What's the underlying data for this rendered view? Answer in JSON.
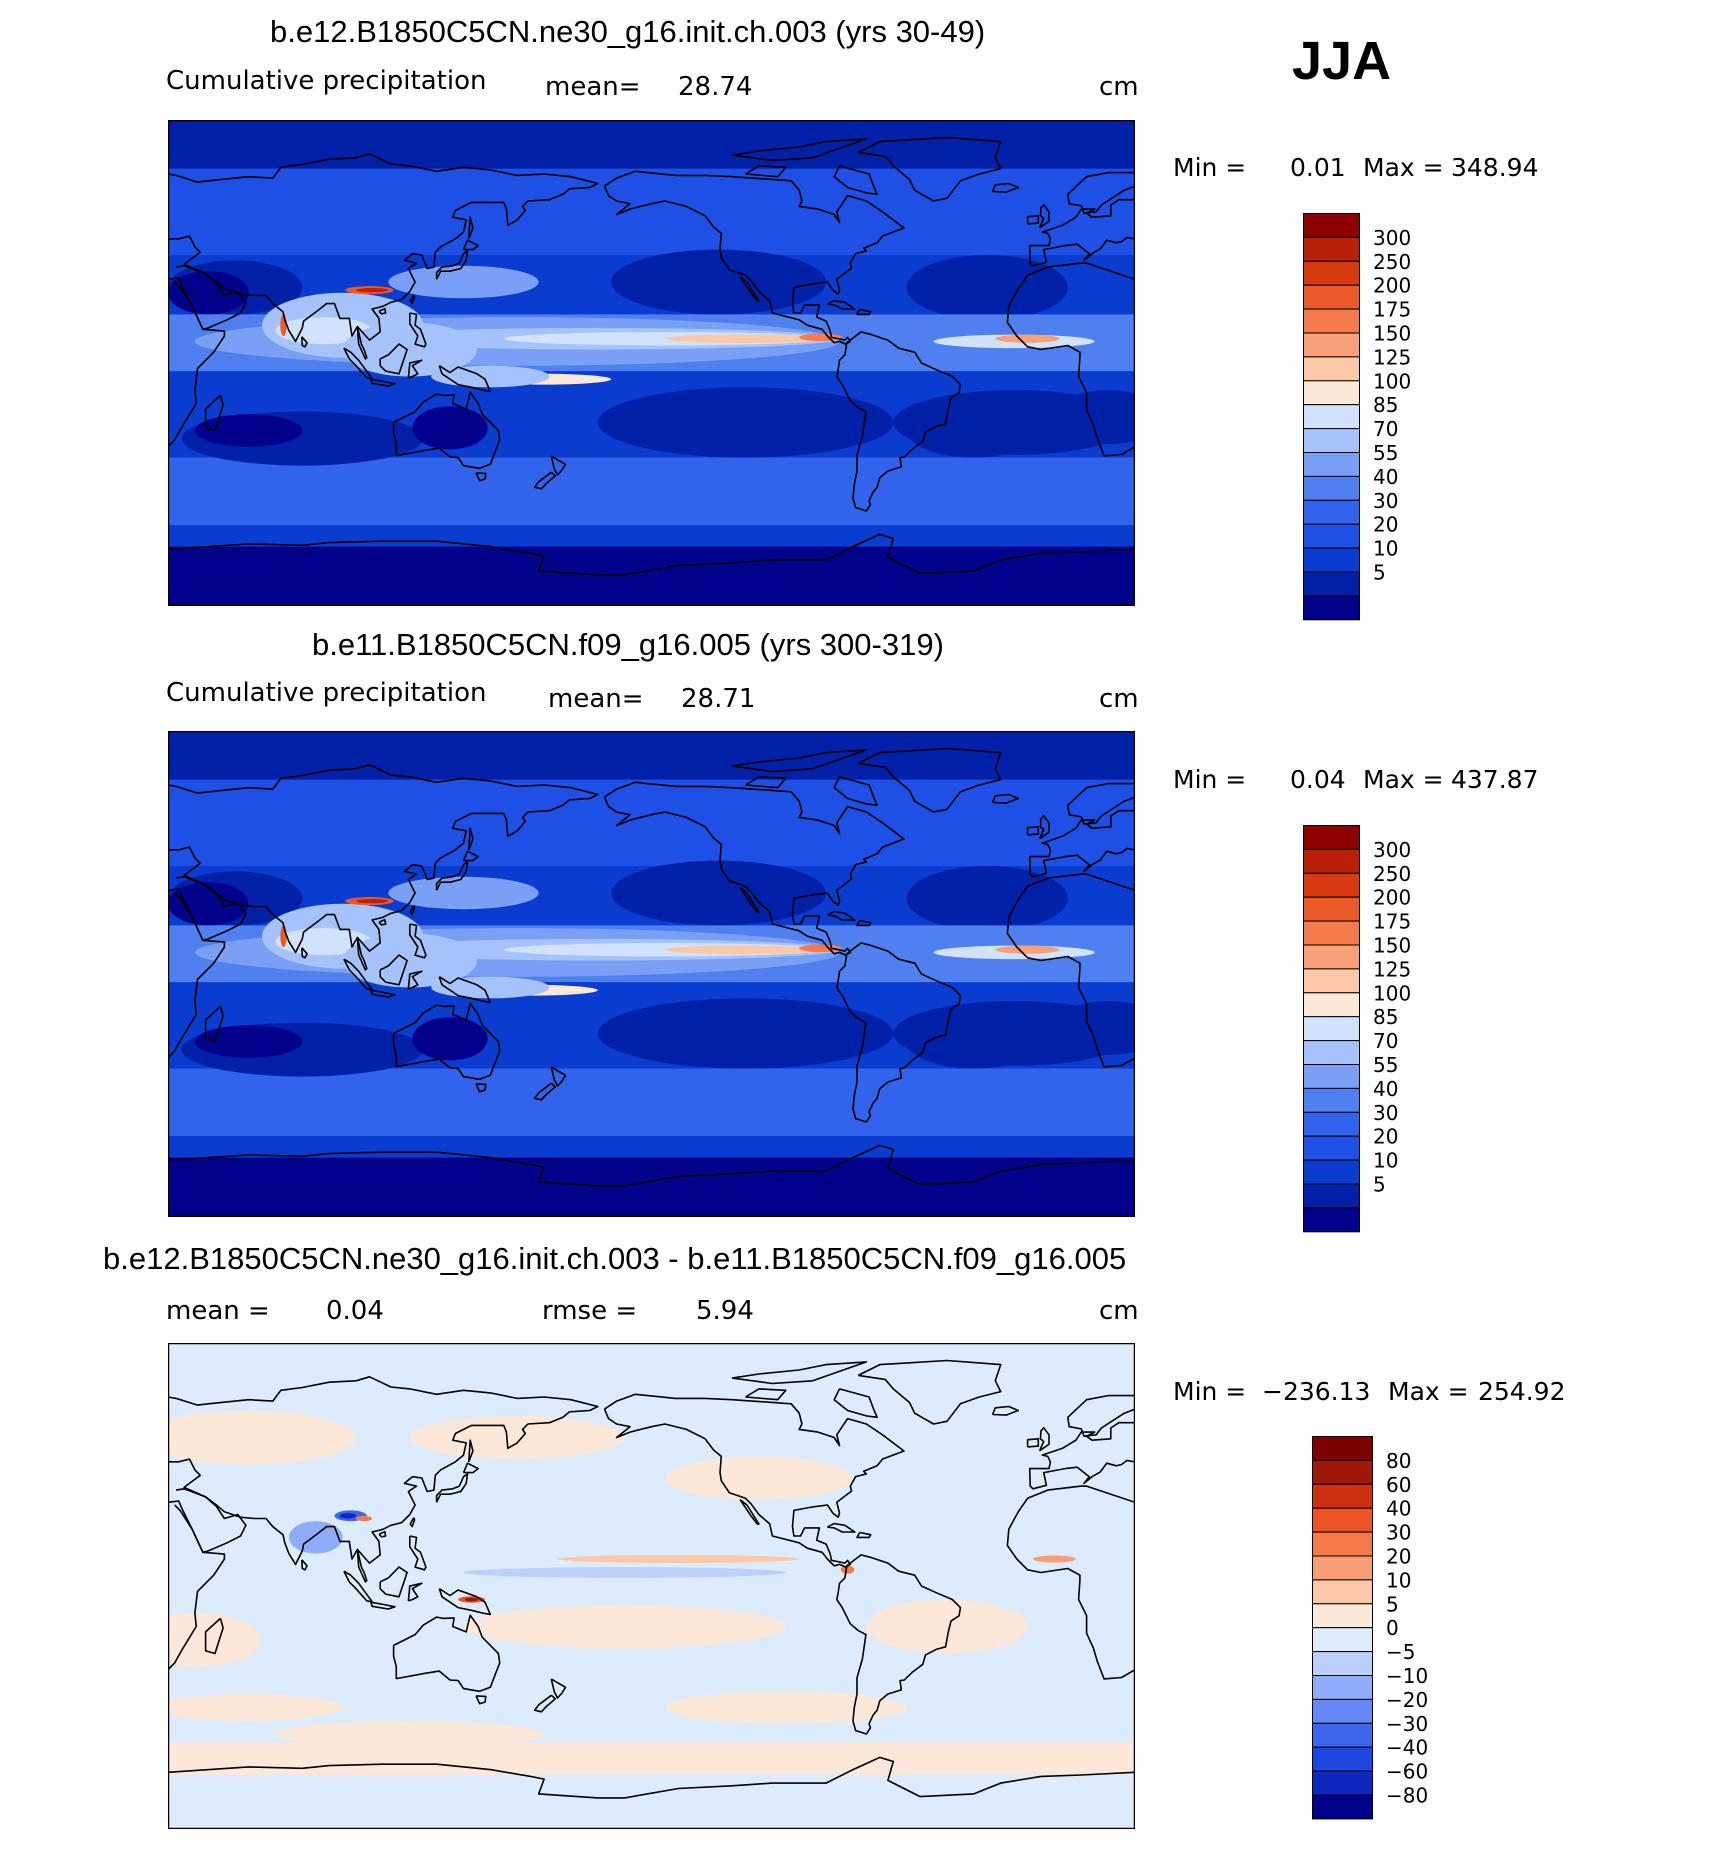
{
  "season": "JJA",
  "colors": {
    "abs_scale": [
      "#00008b",
      "#0020a8",
      "#0a3cd0",
      "#1e50e6",
      "#3264eb",
      "#5080f0",
      "#7aa0f5",
      "#a6c2fa",
      "#d0e2fc",
      "#fce8d8",
      "#fcc8a8",
      "#f8a078",
      "#f47c4c",
      "#ec5a28",
      "#d83a10",
      "#b82008",
      "#8c0000"
    ],
    "diff_scale": [
      "#00008b",
      "#0c28c0",
      "#1e46e0",
      "#3c64ec",
      "#6488f4",
      "#8eacf8",
      "#bcd0fc",
      "#dcecfc",
      "#fce8d8",
      "#fcc8a8",
      "#f89e76",
      "#f47a4a",
      "#ec5424",
      "#cc3010",
      "#a01808",
      "#7c0000"
    ],
    "coastline": "#000000"
  },
  "chart_data": [
    {
      "type": "heatmap",
      "title": "b.e12.B1850C5CN.ne30_g16.init.ch.003 (yrs 30-49)",
      "left_label": "Cumulative precipitation",
      "mean_label": "mean=",
      "mean": "28.74",
      "units": "cm",
      "min_label": "Min =",
      "min": "0.01",
      "max_label": "Max =",
      "max": "348.94",
      "levels": [
        "5",
        "10",
        "20",
        "30",
        "40",
        "55",
        "70",
        "85",
        "100",
        "125",
        "150",
        "175",
        "200",
        "250",
        "300"
      ]
    },
    {
      "type": "heatmap",
      "title": "b.e11.B1850C5CN.f09_g16.005 (yrs 300-319)",
      "left_label": "Cumulative precipitation",
      "mean_label": "mean=",
      "mean": "28.71",
      "units": "cm",
      "min_label": "Min =",
      "min": "0.04",
      "max_label": "Max =",
      "max": "437.87",
      "levels": [
        "5",
        "10",
        "20",
        "30",
        "40",
        "55",
        "70",
        "85",
        "100",
        "125",
        "150",
        "175",
        "200",
        "250",
        "300"
      ]
    },
    {
      "type": "heatmap",
      "title": "b.e12.B1850C5CN.ne30_g16.init.ch.003 - b.e11.B1850C5CN.f09_g16.005",
      "mean_label": "mean =",
      "mean": "0.04",
      "rmse_label": "rmse =",
      "rmse": "5.94",
      "units": "cm",
      "min_label": "Min =",
      "min": "−236.13",
      "max_label": "Max =",
      "max": "254.92",
      "levels": [
        "−80",
        "−60",
        "−40",
        "−30",
        "−20",
        "−10",
        "−5",
        "0",
        "5",
        "10",
        "20",
        "30",
        "40",
        "60",
        "80"
      ]
    }
  ]
}
